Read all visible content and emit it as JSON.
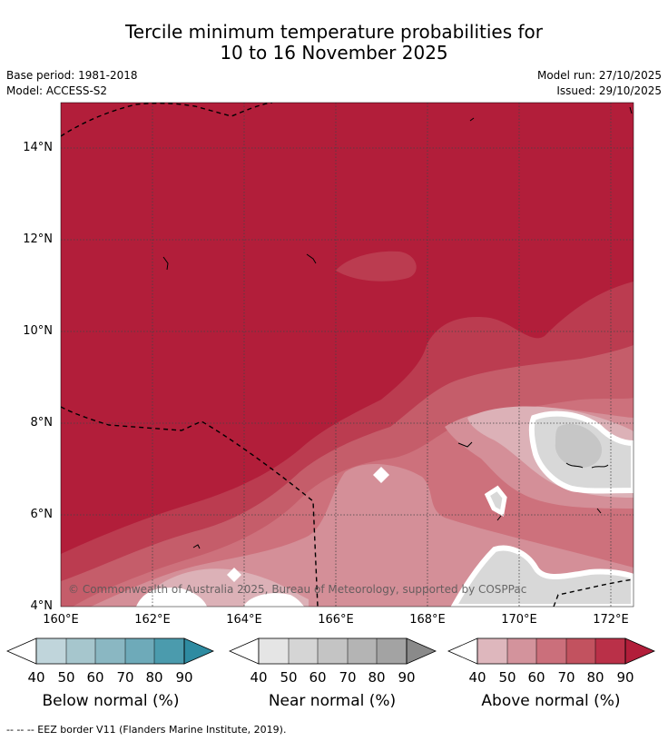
{
  "title": {
    "line1": "Tercile minimum temperature probabilities for",
    "line2": "10 to 16 November 2025"
  },
  "meta": {
    "base_period": "Base period: 1981-2018",
    "model": "Model: ACCESS-S2",
    "model_run": "Model run: 27/10/2025",
    "issued": "Issued: 29/10/2025"
  },
  "map": {
    "lat_labels": [
      "14°N",
      "12°N",
      "10°N",
      "8°N",
      "6°N",
      "4°N"
    ],
    "lon_labels": [
      "160°E",
      "162°E",
      "164°E",
      "166°E",
      "168°E",
      "170°E",
      "172°E"
    ],
    "copyright": "© Commonwealth of Australia 2025, Bureau of Meteorology, supported by COSPPac"
  },
  "colorbars": [
    {
      "title": "Below normal (%)",
      "ticks": [
        "40",
        "50",
        "60",
        "70",
        "80",
        "90"
      ],
      "colors": [
        "#c0d5db",
        "#a6c6cd",
        "#8ab7c2",
        "#6eaab9",
        "#4b9bad",
        "#2e8ba1"
      ],
      "under": "#ffffff",
      "over": "#2e8ba1"
    },
    {
      "title": "Near normal (%)",
      "ticks": [
        "40",
        "50",
        "60",
        "70",
        "80",
        "90"
      ],
      "colors": [
        "#e5e5e5",
        "#d5d5d5",
        "#c4c4c4",
        "#b4b4b4",
        "#a3a3a3",
        "#8a8a8a"
      ],
      "under": "#ffffff",
      "over": "#8a8a8a"
    },
    {
      "title": "Above normal (%)",
      "ticks": [
        "40",
        "50",
        "60",
        "70",
        "80",
        "90"
      ],
      "colors": [
        "#deb7bd",
        "#d3939c",
        "#cb6f7b",
        "#c2525f",
        "#ba3048",
        "#b21e3a"
      ],
      "under": "#ffffff",
      "over": "#b21e3a"
    }
  ],
  "legend_note": "--  --  -- EEZ border V11 (Flanders Marine Institute, 2019).",
  "palette": {
    "above_90": "#b21e3a",
    "above_80": "#bb3c50",
    "above_70": "#c55d6a",
    "above_60": "#cd717c",
    "above_50": "#d48f98",
    "above_40": "#dcb1b7",
    "near_40": "#d8d8d8",
    "near_50": "#c6c6c6"
  }
}
